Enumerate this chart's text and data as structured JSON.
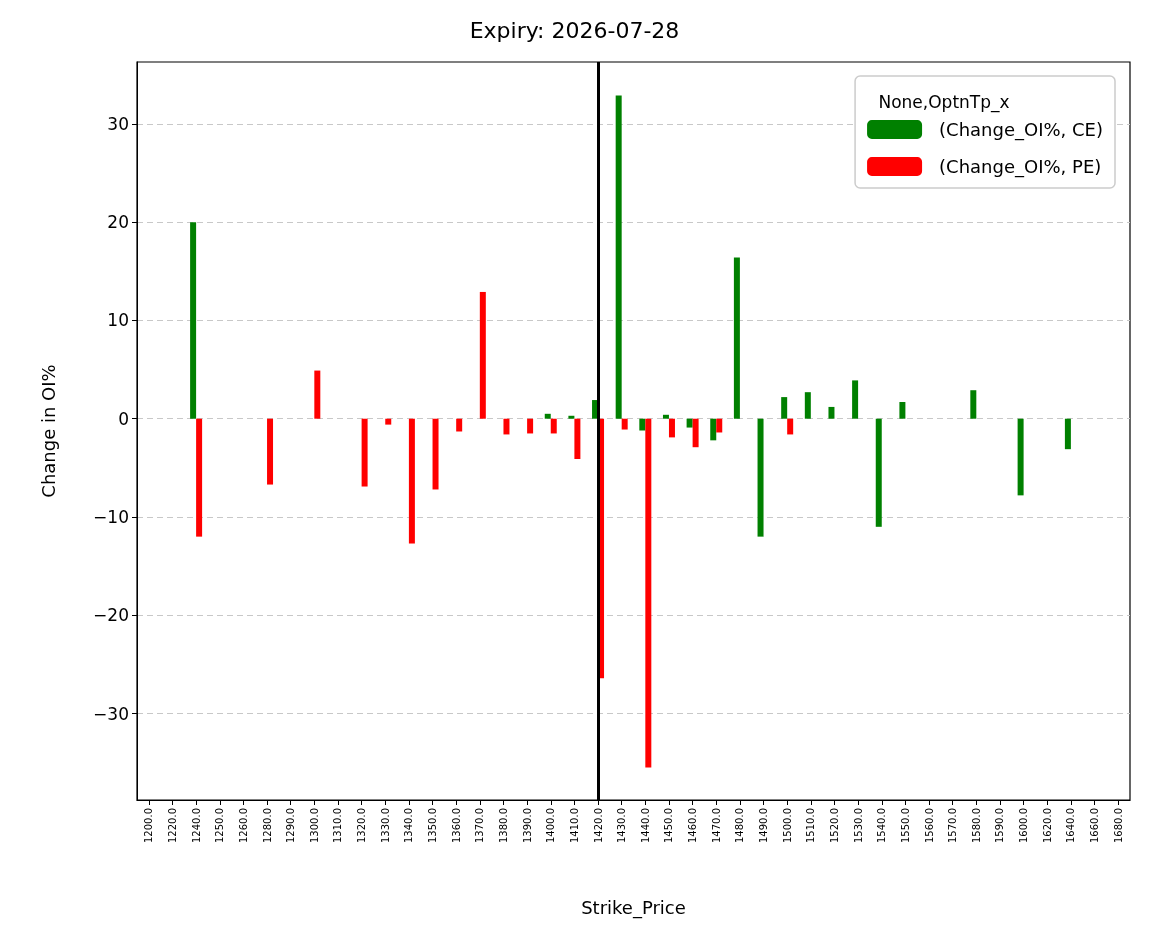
{
  "chart_data": {
    "type": "bar",
    "title": "Expiry: 2026-07-28",
    "xlabel": "Strike_Price",
    "ylabel": "Change in OI%",
    "legend_title": "None,OptnTp_x",
    "categories": [
      "1200.0",
      "1220.0",
      "1240.0",
      "1250.0",
      "1260.0",
      "1280.0",
      "1290.0",
      "1300.0",
      "1310.0",
      "1320.0",
      "1330.0",
      "1340.0",
      "1350.0",
      "1360.0",
      "1370.0",
      "1380.0",
      "1390.0",
      "1400.0",
      "1410.0",
      "1420.0",
      "1430.0",
      "1440.0",
      "1450.0",
      "1460.0",
      "1470.0",
      "1480.0",
      "1490.0",
      "1500.0",
      "1510.0",
      "1520.0",
      "1530.0",
      "1540.0",
      "1550.0",
      "1560.0",
      "1570.0",
      "1580.0",
      "1590.0",
      "1600.0",
      "1620.0",
      "1640.0",
      "1660.0",
      "1680.0"
    ],
    "series": [
      {
        "name": "(Change_OI%, CE)",
        "color": "#008000",
        "values": [
          null,
          null,
          20,
          null,
          null,
          null,
          null,
          null,
          null,
          null,
          null,
          null,
          null,
          null,
          null,
          null,
          null,
          0.5,
          0.3,
          1.9,
          32.9,
          -1.2,
          0.4,
          -0.9,
          -2.2,
          16.4,
          -12,
          2.2,
          2.7,
          1.2,
          3.9,
          -11,
          1.7,
          null,
          null,
          2.9,
          null,
          -7.8,
          null,
          -3.1,
          null,
          null
        ]
      },
      {
        "name": "(Change_OI%, PE)",
        "color": "#ff0000",
        "values": [
          null,
          null,
          -12,
          null,
          null,
          -6.7,
          null,
          4.9,
          null,
          -6.9,
          -0.6,
          -12.7,
          -7.2,
          -1.3,
          12.9,
          -1.6,
          -1.5,
          -1.5,
          -4.1,
          -26.4,
          -1.1,
          -35.5,
          -1.9,
          -2.9,
          -1.4,
          null,
          null,
          -1.6,
          null,
          null,
          null,
          null,
          null,
          null,
          null,
          null,
          null,
          null,
          null,
          null,
          null,
          null
        ]
      }
    ],
    "ylim": [
      -38.8,
      36.3
    ],
    "yticks": [
      {
        "value": -30,
        "label": "−30"
      },
      {
        "value": -20,
        "label": "−20"
      },
      {
        "value": -10,
        "label": "−10"
      },
      0,
      10,
      20,
      30
    ],
    "ref_lines": [
      {
        "axis": "x",
        "value": "1420.0",
        "color": "#000000",
        "line_style": "solid"
      }
    ],
    "grid": "y",
    "legend": "top right"
  }
}
